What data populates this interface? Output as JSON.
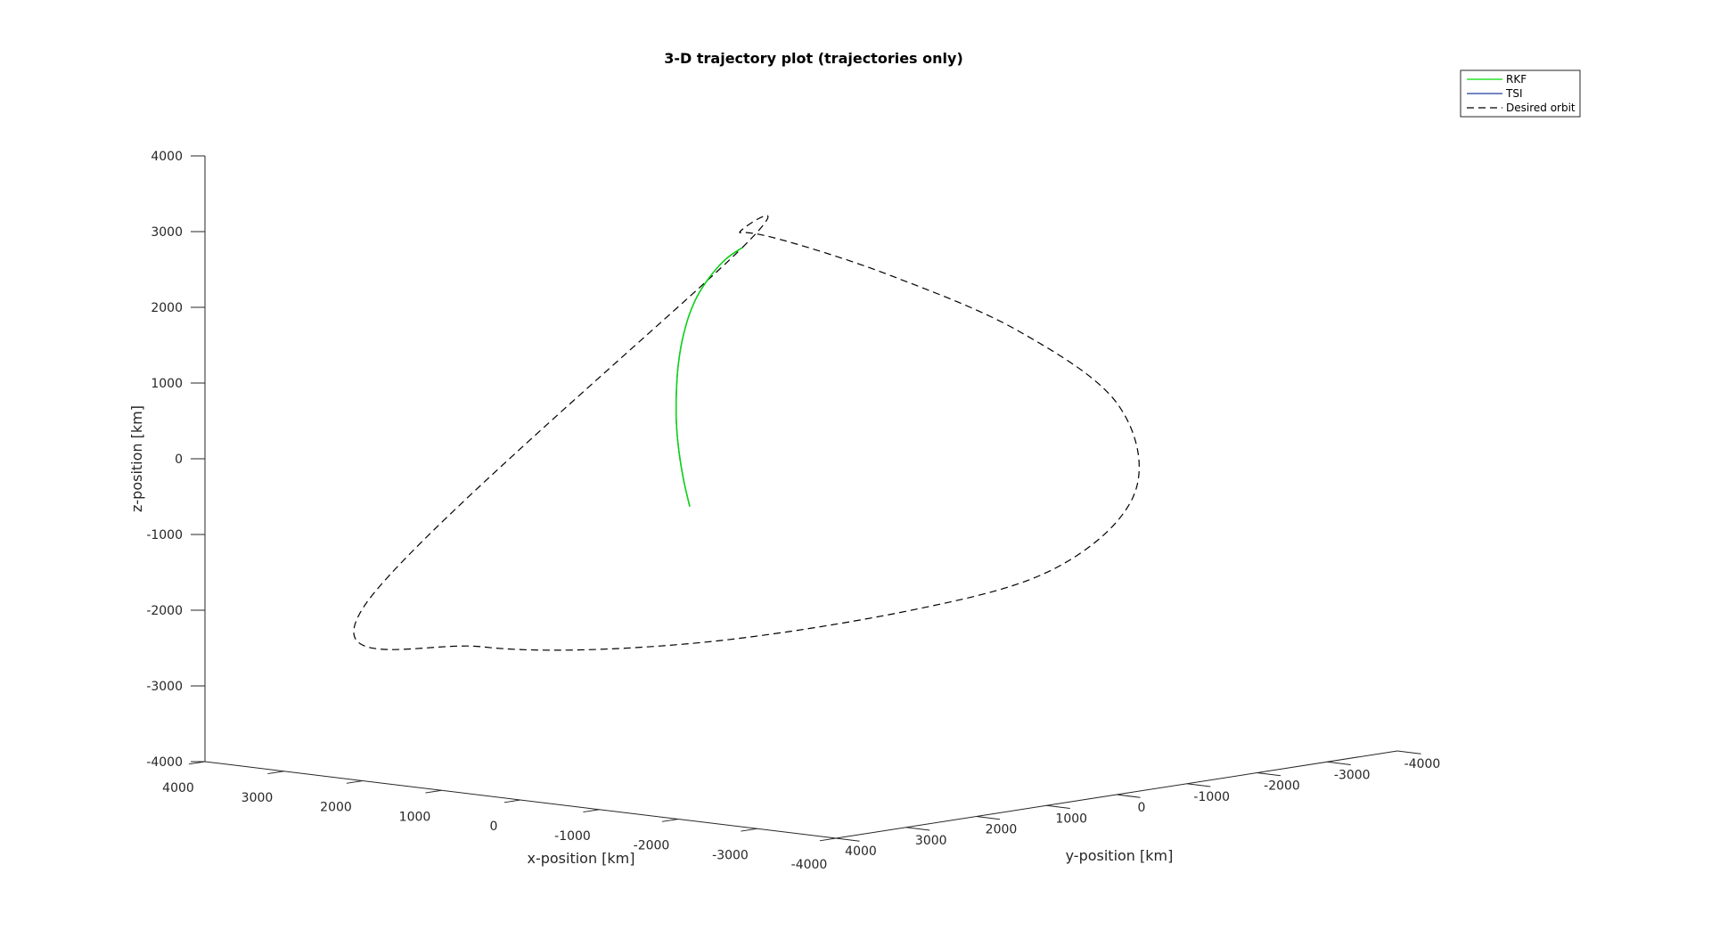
{
  "chart_data": {
    "type": "line",
    "title": "3-D trajectory plot (trajectories only)",
    "xlabel": "x-position [km]",
    "ylabel": "y-position [km]",
    "zlabel": "z-position [km]",
    "xlim": [
      -4000,
      4000
    ],
    "ylim": [
      -4000,
      4000
    ],
    "zlim": [
      -4000,
      4000
    ],
    "x_ticks": [
      4000,
      3000,
      2000,
      1000,
      0,
      -1000,
      -2000,
      -3000,
      -4000
    ],
    "y_ticks": [
      4000,
      3000,
      2000,
      1000,
      0,
      -1000,
      -2000,
      -3000,
      -4000
    ],
    "z_ticks": [
      4000,
      3000,
      2000,
      1000,
      0,
      -1000,
      -2000,
      -3000,
      -4000
    ],
    "x_tick_labels": [
      "4000",
      "3000",
      "2000",
      "1000",
      "0",
      "-1000",
      "-2000",
      "-3000",
      "-4000"
    ],
    "y_tick_labels": [
      "4000",
      "3000",
      "2000",
      "1000",
      "0",
      "-1000",
      "-2000",
      "-3000",
      "-4000"
    ],
    "z_tick_labels": [
      "4000",
      "3000",
      "2000",
      "1000",
      "0",
      "-1000",
      "-2000",
      "-3000",
      "-4000"
    ],
    "grid": false,
    "legend_position": "top-right",
    "legend": [
      "RKF",
      "TSI",
      "Desired orbit"
    ],
    "series": [
      {
        "name": "RKF",
        "color": "#00dd00",
        "style": "solid",
        "x": [
          -670,
          -490,
          -325,
          -170,
          -20,
          135,
          300,
          470,
          640,
          840,
          1060,
          1280
        ],
        "y": [
          2340,
          2230,
          2110,
          1970,
          1800,
          1600,
          1355,
          1070,
          745,
          335,
          -125,
          -600
        ],
        "z": [
          -280,
          50,
          400,
          740,
          1070,
          1380,
          1660,
          1915,
          2130,
          2300,
          2420,
          2470
        ]
      },
      {
        "name": "TSI",
        "color": "#1f3f9f",
        "style": "solid",
        "x": [
          -670,
          -490,
          -325,
          -170,
          -20,
          135,
          300,
          470,
          640,
          840,
          1060,
          1280
        ],
        "y": [
          2340,
          2230,
          2110,
          1970,
          1800,
          1600,
          1355,
          1070,
          745,
          335,
          -125,
          -600
        ],
        "z": [
          -280,
          50,
          400,
          740,
          1070,
          1380,
          1660,
          1915,
          2130,
          2300,
          2420,
          2470
        ]
      },
      {
        "name": "Desired orbit",
        "color": "#000000",
        "style": "dashed",
        "closed": true,
        "x": [
          1280,
          2330,
          2550,
          1910,
          670,
          -830,
          -2000,
          -2330,
          -1880,
          -670,
          660,
          1880,
          1280
        ],
        "y": [
          -600,
          -1750,
          -2700,
          -3450,
          -3830,
          -3570,
          -2510,
          -1050,
          430,
          2340,
          3800,
          4120,
          -600
        ],
        "z": [
          2470,
          2370,
          2080,
          1600,
          990,
          250,
          -620,
          -1350,
          -1750,
          -2090,
          -2090,
          -1670,
          2470
        ]
      }
    ]
  }
}
